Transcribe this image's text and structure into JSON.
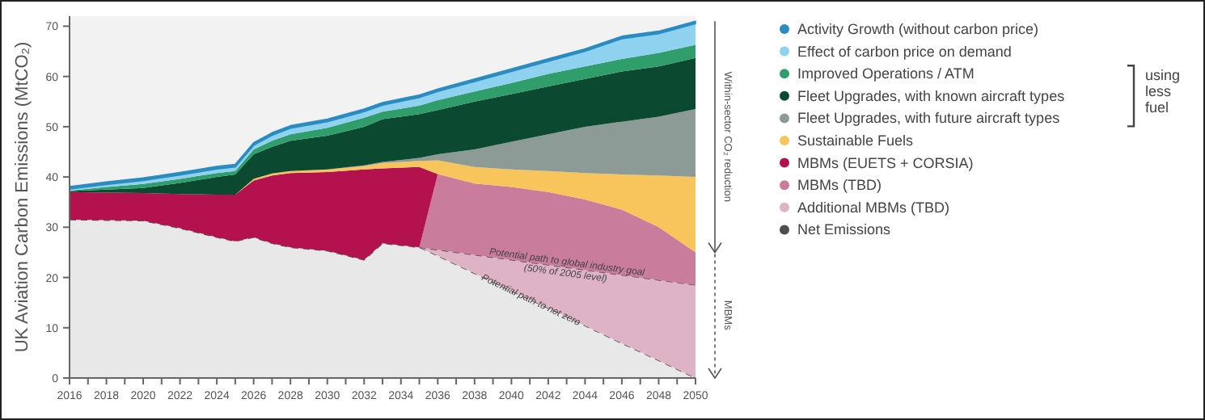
{
  "chart_data": {
    "type": "area",
    "stacked": true,
    "ylabel": "UK Aviation Carbon Emissions (MtCO₂)",
    "x": [
      2016,
      2018,
      2020,
      2022,
      2024,
      2025,
      2026,
      2027,
      2028,
      2030,
      2032,
      2033,
      2035,
      2036,
      2038,
      2040,
      2042,
      2044,
      2046,
      2048,
      2050
    ],
    "series": [
      {
        "name": "Net Emissions",
        "color": "#4d4d4d",
        "line_style": "dashed",
        "values": [
          31.5,
          31.4,
          31.3,
          29.8,
          28,
          27.2,
          28,
          26.8,
          26,
          25.3,
          23.5,
          26.8,
          26,
          24.3,
          20.8,
          17.3,
          13.9,
          10.4,
          6.9,
          3.5,
          0
        ]
      },
      {
        "name": "Additional MBMs (TBD)",
        "color": "#dfb3c6",
        "line_style": "dashed",
        "values": [
          null,
          null,
          null,
          null,
          null,
          null,
          null,
          null,
          null,
          null,
          null,
          null,
          0,
          1.2,
          3.7,
          6.2,
          8.6,
          11.1,
          13.6,
          16,
          18.5
        ]
      },
      {
        "name": "MBMs (TBD)",
        "color": "#c97c9c",
        "values": [
          null,
          null,
          null,
          null,
          null,
          null,
          null,
          null,
          null,
          null,
          null,
          null,
          0,
          15.1,
          14.2,
          14.5,
          14.5,
          14,
          13,
          10.5,
          6.5
        ]
      },
      {
        "name": "MBMs (EUETS + CORSIA)",
        "color": "#b3124e",
        "values": [
          5.5,
          5.5,
          5.5,
          6.8,
          8.5,
          9.3,
          11.3,
          13.5,
          14.8,
          15.7,
          18,
          14.9,
          16,
          0,
          null,
          null,
          null,
          null,
          null,
          null,
          null
        ]
      },
      {
        "name": "Sustainable Fuels",
        "color": "#f8c45c",
        "values": [
          null,
          null,
          null,
          null,
          null,
          0,
          0.3,
          0.4,
          0.4,
          0.5,
          0.7,
          1.1,
          1.2,
          2.7,
          3.3,
          3.5,
          4.2,
          5.3,
          7,
          10.3,
          15
        ]
      },
      {
        "name": "Fleet Upgrades, with future aircraft types",
        "color": "#8d9b97",
        "values": [
          null,
          null,
          null,
          null,
          null,
          null,
          null,
          null,
          null,
          0,
          0.1,
          0.2,
          0.6,
          1.2,
          3.5,
          5.5,
          7.3,
          9.2,
          10.5,
          11.7,
          13.5
        ]
      },
      {
        "name": "Fleet Upgrades, with known aircraft types",
        "color": "#0b4a31",
        "values": [
          0.2,
          0.6,
          1,
          2.2,
          3.5,
          4,
          4.9,
          5.3,
          6,
          6.7,
          7.7,
          8.5,
          8.7,
          8.8,
          9.5,
          9.5,
          9.5,
          9.5,
          10,
          10,
          10.2
        ]
      },
      {
        "name": "Improved Operations / ATM",
        "color": "#2f9e6b",
        "values": [
          0.1,
          0.5,
          0.8,
          0.8,
          0.8,
          0.7,
          1,
          1.2,
          1.3,
          1.6,
          1.8,
          1.5,
          1.7,
          2,
          2,
          2.2,
          2.5,
          2.5,
          2.5,
          2.7,
          2.6
        ]
      },
      {
        "name": "Effect of carbon price on demand",
        "color": "#8fd2f0",
        "values": [
          0.3,
          0.5,
          0.7,
          0.8,
          0.8,
          0.8,
          0.8,
          1.1,
          1.2,
          1.2,
          1.2,
          1.3,
          1.6,
          1.7,
          2,
          2.3,
          2.5,
          3,
          4,
          3.8,
          4.2
        ]
      },
      {
        "name": "Activity Growth (without carbon price)",
        "color": "#2a8cc0",
        "values": [
          0.5,
          0.5,
          0.5,
          0.5,
          0.5,
          0.5,
          0.5,
          0.5,
          0.5,
          0.5,
          0.5,
          0.5,
          0.5,
          0.5,
          0.5,
          0.5,
          0.5,
          0.5,
          0.5,
          0.5,
          0.5
        ]
      }
    ],
    "xlim": [
      2016,
      2050
    ],
    "xticks": [
      2016,
      {
        "value": 2017,
        "label": null
      },
      2018,
      {
        "value": 2019,
        "label": null
      },
      2020,
      {
        "value": 2021,
        "label": null
      },
      2022,
      {
        "value": 2023,
        "label": null
      },
      2024,
      {
        "value": 2025,
        "label": null
      },
      2026,
      {
        "value": 2027,
        "label": null
      },
      2028,
      {
        "value": 2029,
        "label": null
      },
      2030,
      {
        "value": 2031,
        "label": null
      },
      2032,
      {
        "value": 2033,
        "label": null
      },
      2034,
      {
        "value": 2035,
        "label": null
      },
      2036,
      {
        "value": 2037,
        "label": null
      },
      2038,
      {
        "value": 2039,
        "label": null
      },
      2040,
      {
        "value": 2041,
        "label": null
      },
      2042,
      {
        "value": 2043,
        "label": null
      },
      2044,
      {
        "value": 2045,
        "label": null
      },
      2046,
      {
        "value": 2047,
        "label": null
      },
      2048,
      {
        "value": 2049,
        "label": null
      },
      2050
    ],
    "ylim": [
      0,
      72
    ],
    "yticks": [
      0,
      10,
      20,
      30,
      40,
      50,
      60,
      70
    ],
    "grid": false,
    "legend": "right",
    "annotations": [
      {
        "text": "Potential path to global industry goal\n(50% of 2005 level)",
        "x": 2043,
        "y": 22.5
      },
      {
        "text": "Potential path to net zero",
        "x": 2041,
        "y": 15
      },
      "Within-sector CO₂ reduction",
      "MBMs",
      "using\nless\nfuel"
    ]
  }
}
